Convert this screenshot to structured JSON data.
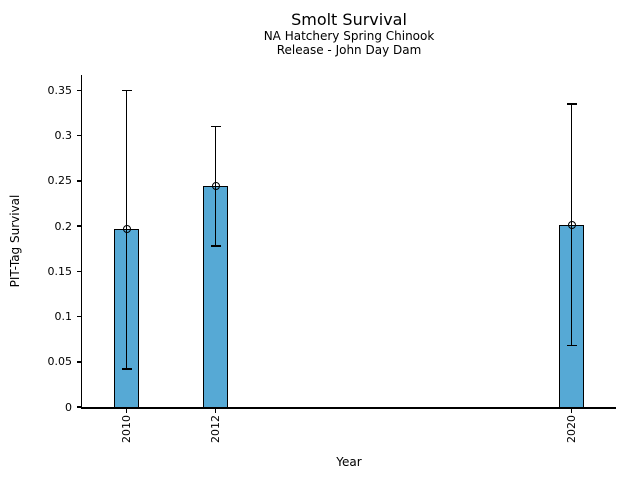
{
  "chart_data": {
    "type": "bar",
    "title": "Smolt Survival",
    "subtitle_lines": [
      "NA Hatchery Spring Chinook",
      "Release - John Day Dam"
    ],
    "xlabel": "Year",
    "ylabel": "PIT-Tag Survival",
    "categories": [
      "2010",
      "2012",
      "2020"
    ],
    "x": [
      2010,
      2012,
      2020
    ],
    "values": [
      0.197,
      0.244,
      0.201
    ],
    "error_low": [
      0.042,
      0.178,
      0.068
    ],
    "error_high": [
      0.35,
      0.31,
      0.335
    ],
    "xlim": [
      2009,
      2021
    ],
    "ylim": [
      0,
      0.367
    ],
    "yticks": [
      0,
      0.05,
      0.1,
      0.15,
      0.2,
      0.25,
      0.3,
      0.35
    ],
    "ytick_labels": [
      "0",
      "0.05",
      "0.1",
      "0.15",
      "0.2",
      "0.25",
      "0.3",
      "0.35"
    ],
    "xtick_labels": [
      "2010",
      "2012",
      "2020"
    ],
    "grid": false,
    "legend": null,
    "marker": "open-circle",
    "bar_color": "#56A9D5",
    "edge_color": "#000000"
  }
}
